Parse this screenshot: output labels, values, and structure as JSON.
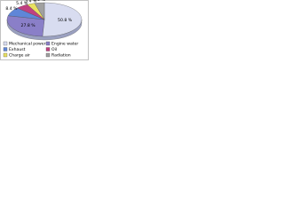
{
  "chart_data": {
    "type": "pie",
    "categories": [
      "Mechanical power",
      "Engine water",
      "Exhaust",
      "Oil",
      "Charge air",
      "Radiation"
    ],
    "values": [
      50.8,
      27.8,
      8.4,
      5.4,
      3.4,
      4.2
    ],
    "value_labels": [
      "50.8 %",
      "27.8 %",
      "8.4 %",
      "5.4 %",
      "3.4 %",
      "4.2 %"
    ],
    "colors": [
      "#d8dcf0",
      "#8a7fc8",
      "#5f86d8",
      "#c04080",
      "#e8e060",
      "#a0a0a0"
    ],
    "legend": "bottom"
  }
}
